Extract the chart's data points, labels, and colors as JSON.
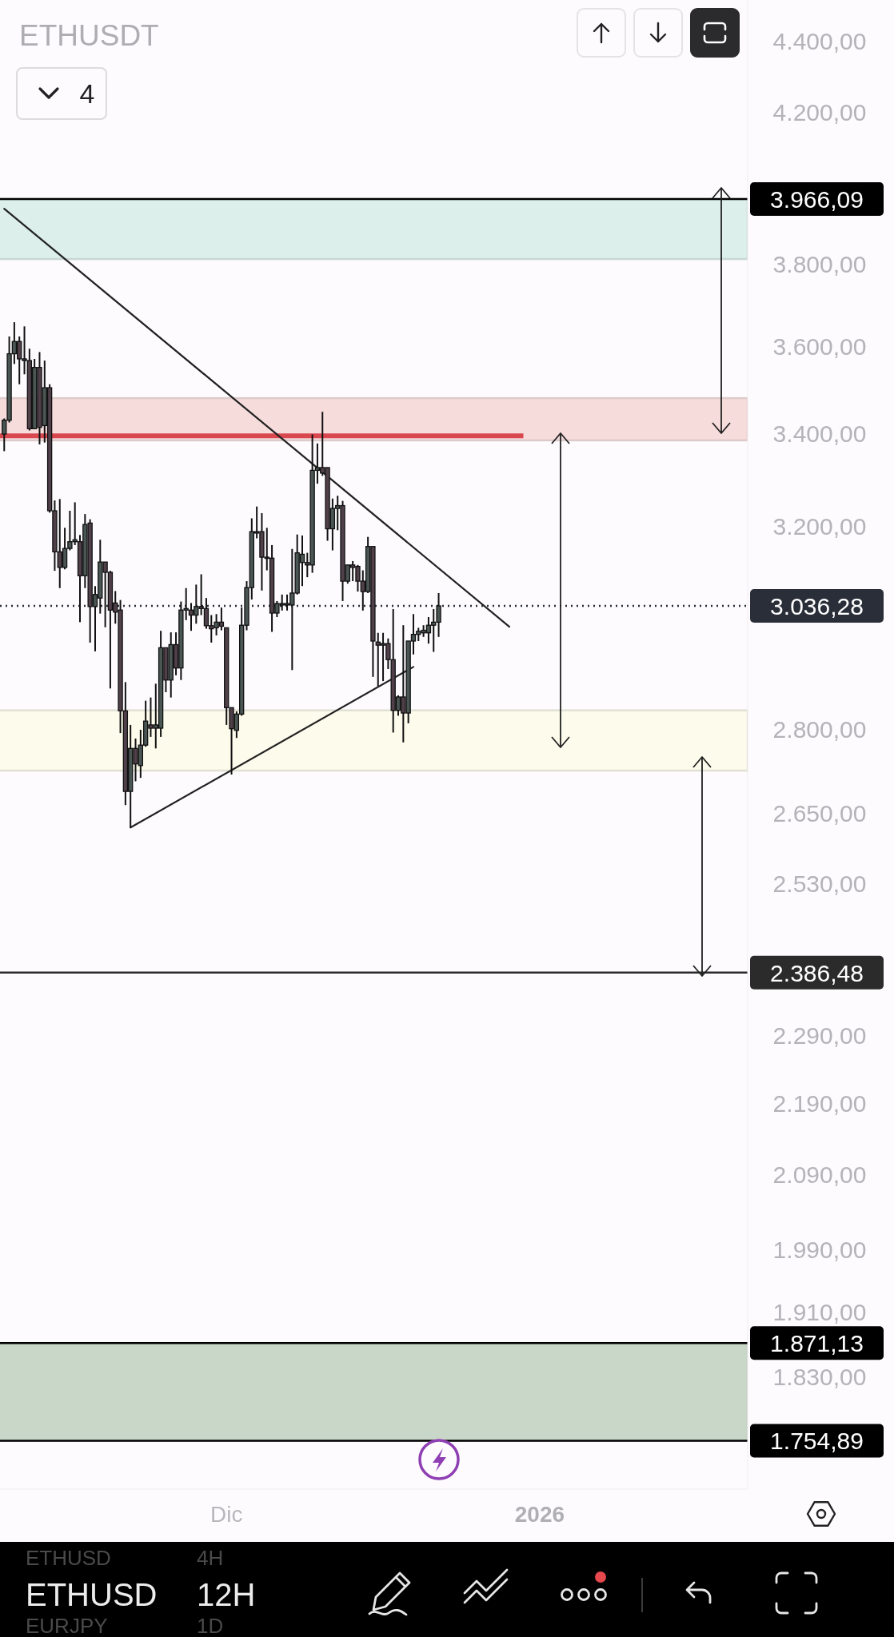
{
  "chart_data": {
    "type": "candlestick",
    "title": "ETHUSDT",
    "categories": [
      null,
      null,
      null,
      null,
      null,
      null,
      null,
      null,
      null,
      null,
      null,
      null,
      null,
      null,
      null,
      null,
      null,
      null,
      null,
      null,
      null,
      null,
      null,
      null,
      null,
      null,
      null,
      null,
      null,
      null,
      null,
      null,
      null,
      null,
      null,
      null,
      null,
      null,
      null,
      null,
      null,
      null,
      null,
      null,
      "Dic",
      null,
      null,
      null,
      null,
      null,
      null,
      null,
      null,
      null,
      null,
      null,
      null,
      null,
      null,
      null,
      null,
      null,
      null,
      null,
      null,
      null,
      null,
      null,
      null,
      null,
      null,
      null,
      null,
      null,
      null,
      null,
      null,
      null,
      null,
      null,
      null,
      null,
      null,
      null,
      null,
      null,
      null,
      null,
      null,
      null,
      null,
      null,
      null,
      null,
      null,
      null,
      null,
      null,
      null,
      null,
      null,
      null,
      null,
      null,
      null,
      null,
      "2026",
      null,
      null,
      null,
      null,
      null,
      null,
      null,
      null,
      null,
      null,
      null,
      null,
      null,
      null,
      null,
      null,
      null,
      null,
      null,
      null,
      null,
      null,
      null,
      null,
      null,
      null,
      null,
      null,
      null,
      null,
      null,
      null,
      null,
      null,
      null,
      null,
      null,
      null,
      null,
      null
    ],
    "ohlc": [
      [
        3399,
        3434,
        3361,
        3430
      ],
      [
        3430,
        3624,
        3425,
        3583
      ],
      [
        3583,
        3658,
        3559,
        3612
      ],
      [
        3612,
        3624,
        3512,
        3571
      ],
      [
        3571,
        3648,
        3535,
        3567
      ],
      [
        3567,
        3595,
        3407,
        3411
      ],
      [
        3411,
        3571,
        3410,
        3551
      ],
      [
        3551,
        3587,
        3376,
        3414
      ],
      [
        3418,
        3567,
        3380,
        3504
      ],
      [
        3504,
        3512,
        3228,
        3232
      ],
      [
        3232,
        3254,
        3107,
        3146
      ],
      [
        3146,
        3257,
        3072,
        3114
      ],
      [
        3114,
        3196,
        3110,
        3153
      ],
      [
        3153,
        3232,
        3149,
        3167
      ],
      [
        3167,
        3250,
        3160,
        3171
      ],
      [
        3167,
        3181,
        3004,
        3097
      ],
      [
        3097,
        3225,
        3072,
        3203
      ],
      [
        3206,
        3214,
        2964,
        3035
      ],
      [
        3035,
        3076,
        2947,
        3059
      ],
      [
        3052,
        3171,
        3021,
        3125
      ],
      [
        3125,
        3125,
        2994,
        3104
      ],
      [
        3104,
        3107,
        2876,
        3028
      ],
      [
        3042,
        3066,
        3001,
        3024
      ],
      [
        3028,
        3048,
        2793,
        2834
      ],
      [
        2834,
        2888,
        2664,
        2688
      ],
      [
        2688,
        2808,
        2625,
        2765
      ],
      [
        2765,
        2783,
        2706,
        2737
      ],
      [
        2734,
        2799,
        2712,
        2771
      ],
      [
        2771,
        2853,
        2768,
        2815
      ],
      [
        2808,
        2859,
        2786,
        2802
      ],
      [
        2802,
        2885,
        2765,
        2808
      ],
      [
        2802,
        2987,
        2786,
        2954
      ],
      [
        2954,
        2954,
        2869,
        2892
      ],
      [
        2892,
        2984,
        2859,
        2960
      ],
      [
        2960,
        2984,
        2901,
        2915
      ],
      [
        2915,
        3045,
        2892,
        3028
      ],
      [
        3028,
        3072,
        3008,
        3031
      ],
      [
        3028,
        3042,
        2987,
        3018
      ],
      [
        3018,
        3079,
        3001,
        3035
      ],
      [
        3035,
        3100,
        3018,
        3031
      ],
      [
        3031,
        3052,
        2991,
        2997
      ],
      [
        2997,
        3018,
        2964,
        2991
      ],
      [
        2993,
        3020,
        2978,
        3004
      ],
      [
        3004,
        3033,
        2988,
        2996
      ],
      [
        2993,
        2993,
        2808,
        2840
      ],
      [
        2840,
        2840,
        2718,
        2801
      ],
      [
        2798,
        2833,
        2784,
        2828
      ],
      [
        2828,
        3033,
        2825,
        2998
      ],
      [
        2998,
        3086,
        2988,
        3073
      ],
      [
        3073,
        3216,
        3049,
        3188
      ],
      [
        3188,
        3241,
        3174,
        3185
      ],
      [
        3188,
        3227,
        3067,
        3135
      ],
      [
        3135,
        3196,
        3108,
        3133
      ],
      [
        3133,
        3160,
        2985,
        3022
      ],
      [
        3022,
        3046,
        3014,
        3041
      ],
      [
        3041,
        3059,
        3027,
        3038
      ],
      [
        3038,
        3059,
        3027,
        3041
      ],
      [
        3038,
        3152,
        2911,
        3062
      ],
      [
        3062,
        3182,
        3059,
        3144
      ],
      [
        3124,
        3180,
        3076,
        3141
      ],
      [
        3124,
        3144,
        3094,
        3119
      ],
      [
        3119,
        3398,
        3103,
        3319
      ],
      [
        3319,
        3378,
        3290,
        3325
      ],
      [
        3325,
        3449,
        3307,
        3313
      ],
      [
        3325,
        3325,
        3169,
        3194
      ],
      [
        3194,
        3258,
        3149,
        3237
      ],
      [
        3237,
        3264,
        3191,
        3243
      ],
      [
        3243,
        3253,
        3046,
        3086
      ],
      [
        3086,
        3119,
        3081,
        3119
      ],
      [
        3119,
        3127,
        3086,
        3114
      ],
      [
        3116,
        3119,
        3065,
        3086
      ],
      [
        3086,
        3108,
        3027,
        3065
      ],
      [
        3065,
        3177,
        3062,
        3157
      ],
      [
        3157,
        3157,
        2898,
        2967
      ],
      [
        2965,
        2983,
        2880,
        2959
      ],
      [
        2959,
        2983,
        2890,
        2962
      ],
      [
        2962,
        2972,
        2913,
        2931
      ],
      [
        2931,
        3030,
        2794,
        2835
      ],
      [
        2835,
        2863,
        2825,
        2860
      ],
      [
        2860,
        2998,
        2776,
        2830
      ],
      [
        2830,
        2967,
        2811,
        2967
      ],
      [
        2967,
        3020,
        2941,
        2980
      ],
      [
        2980,
        2993,
        2967,
        2986
      ],
      [
        2983,
        2998,
        2975,
        2988
      ],
      [
        2983,
        3014,
        2962,
        2998
      ],
      [
        2998,
        3030,
        2946,
        3004
      ],
      [
        3004,
        3062,
        2975,
        3036.28
      ],
      null,
      null,
      null,
      null,
      null,
      null,
      null,
      null,
      null,
      null,
      null,
      null,
      null,
      null,
      null,
      null,
      null,
      null,
      null,
      null,
      null,
      null,
      null,
      null,
      null,
      null,
      null,
      null,
      null,
      null,
      null,
      null,
      null,
      null,
      null,
      null,
      null,
      null,
      null,
      null,
      null,
      null,
      null,
      null,
      null,
      null,
      null,
      null,
      null,
      null,
      null,
      null,
      null,
      null,
      null,
      null,
      null,
      null,
      null,
      null
    ],
    "colors": [
      "#4a5653",
      "#4a5653",
      "#4a5653",
      "#51404a",
      "#51404a",
      "#51404a",
      "#4a5653",
      "#51404a",
      "#4a5653",
      "#51404a",
      "#51404a",
      "#51404a",
      "#4a5653",
      "#4a5653",
      "#4a5653",
      "#51404a",
      "#4a5653",
      "#51404a",
      "#4a5653",
      "#4a5653",
      "#51404a",
      "#51404a",
      "#51404a",
      "#51404a",
      "#51404a",
      "#4a5653",
      "#51404a",
      "#4a5653",
      "#4a5653",
      "#51404a",
      "#4a5653",
      "#4a5653",
      "#51404a",
      "#4a5653",
      "#51404a",
      "#4a5653",
      "#4a5653",
      "#51404a",
      "#4a5653",
      "#51404a",
      "#51404a",
      "#51404a",
      "#4a5653",
      "#51404a",
      "#51404a",
      "#51404a",
      "#4a5653",
      "#4a5653",
      "#4a5653",
      "#4a5653",
      "#51404a",
      "#51404a",
      "#51404a",
      "#51404a",
      "#4a5653",
      "#51404a",
      "#4a5653",
      "#4a5653",
      "#4a5653",
      "#4a5653",
      "#51404a",
      "#4a5653",
      "#4a5653",
      "#51404a",
      "#51404a",
      "#4a5653",
      "#4a5653",
      "#51404a",
      "#4a5653",
      "#51404a",
      "#51404a",
      "#51404a",
      "#4a5653",
      "#51404a",
      "#51404a",
      "#4a5653",
      "#51404a",
      "#51404a",
      "#4a5653",
      "#51404a",
      "#4a5653",
      "#4a5653",
      "#4a5653",
      "#4a5653",
      "#4a5653",
      "#4a5653",
      "#4a5653",
      null,
      null,
      null,
      null,
      null,
      null,
      null,
      null,
      null,
      null,
      null,
      null,
      null,
      null,
      null,
      null,
      null,
      null,
      null,
      null,
      null,
      null,
      null,
      null,
      null,
      null,
      null,
      null,
      null,
      null,
      null,
      null,
      null,
      null,
      null,
      null,
      null,
      null,
      null,
      null,
      null,
      null,
      null,
      null,
      null,
      null,
      null,
      null,
      null,
      null,
      null,
      null,
      null,
      null,
      null,
      null,
      null,
      null,
      null,
      null
    ],
    "series": [
      {
        "type": "line",
        "color": "#222222",
        "values": [
          3941,
          null,
          null,
          null,
          null,
          null,
          null,
          null,
          null,
          null,
          null,
          null,
          null,
          null,
          null,
          null,
          null,
          null,
          null,
          null,
          null,
          null,
          null,
          null,
          null,
          null,
          null,
          null,
          null,
          null,
          null,
          null,
          null,
          null,
          null,
          null,
          null,
          null,
          null,
          null,
          null,
          null,
          null,
          null,
          null,
          null,
          null,
          null,
          null,
          null,
          null,
          null,
          null,
          null,
          null,
          null,
          null,
          null,
          null,
          null,
          null,
          null,
          null,
          null,
          null,
          null,
          null,
          null,
          null,
          null,
          null,
          null,
          null,
          null,
          null,
          null,
          null,
          null,
          null,
          null,
          null,
          null,
          null,
          null,
          null,
          null,
          null,
          null,
          null,
          null,
          null,
          null,
          null,
          null,
          null,
          null,
          null,
          null,
          null,
          null,
          2995,
          null,
          null,
          null,
          null,
          null,
          null,
          null,
          null,
          null,
          null,
          null,
          null,
          null,
          null,
          null,
          null,
          null,
          null,
          null,
          null,
          null,
          null,
          null,
          null,
          null,
          null,
          null,
          null,
          null,
          null,
          null,
          null,
          null,
          null,
          null,
          null,
          null,
          null,
          null,
          null,
          null,
          null,
          null,
          null,
          null,
          null
        ]
      },
      {
        "type": "line",
        "color": "#222222",
        "values": [
          null,
          null,
          null,
          null,
          null,
          null,
          null,
          null,
          null,
          null,
          null,
          null,
          null,
          null,
          null,
          null,
          null,
          null,
          null,
          null,
          null,
          null,
          null,
          null,
          null,
          2625,
          null,
          null,
          null,
          null,
          null,
          null,
          null,
          null,
          null,
          null,
          null,
          null,
          null,
          null,
          null,
          null,
          null,
          null,
          null,
          null,
          null,
          null,
          null,
          null,
          null,
          null,
          null,
          null,
          null,
          null,
          null,
          null,
          null,
          null,
          null,
          null,
          null,
          null,
          null,
          null,
          null,
          null,
          null,
          null,
          null,
          null,
          null,
          null,
          null,
          null,
          null,
          null,
          null,
          null,
          null,
          2917,
          null,
          null,
          null,
          null,
          null,
          null,
          null,
          null,
          null,
          null,
          null,
          null,
          null,
          null,
          null,
          null,
          null,
          null,
          null,
          null,
          null,
          null,
          null,
          null,
          null,
          null,
          null,
          null,
          null,
          null,
          null,
          null,
          null,
          null,
          null,
          null,
          null,
          null,
          null,
          null,
          null,
          null,
          null,
          null,
          null,
          null,
          null,
          null,
          null,
          null,
          null,
          null,
          null,
          null,
          null,
          null,
          null,
          null,
          null,
          null,
          null,
          null,
          null,
          null,
          null
        ]
      }
    ],
    "log": true,
    "ylim": [
      1700,
      4520
    ],
    "yticks": [
      {
        "value": 4400,
        "label": "4.400,00"
      },
      {
        "value": 4200,
        "label": "4.200,00"
      },
      {
        "value": 3800,
        "label": "3.800,00"
      },
      {
        "value": 3600,
        "label": "3.600,00"
      },
      {
        "value": 3400,
        "label": "3.400,00"
      },
      {
        "value": 3200,
        "label": "3.200,00"
      },
      {
        "value": 2800,
        "label": "2.800,00"
      },
      {
        "value": 2650,
        "label": "2.650,00"
      },
      {
        "value": 2530,
        "label": "2.530,00"
      },
      {
        "value": 2290,
        "label": "2.290,00"
      },
      {
        "value": 2190,
        "label": "2.190,00"
      },
      {
        "value": 2090,
        "label": "2.090,00"
      },
      {
        "value": 1990,
        "label": "1.990,00"
      },
      {
        "value": 1910,
        "label": "1.910,00"
      },
      {
        "value": 1830,
        "label": "1.830,00"
      }
    ],
    "bands": [
      {
        "axis": "y",
        "from": 3813,
        "to": 3966.09,
        "color": "#dcefea"
      },
      {
        "axis": "y",
        "from": 3385,
        "to": 3480,
        "color": "#f7dcdc"
      },
      {
        "axis": "y",
        "from": 2725,
        "to": 2835,
        "color": "#fdfbeb"
      },
      {
        "axis": "y",
        "from": 1754.89,
        "to": 1871.13,
        "color": "#c9d7c9"
      }
    ],
    "ref_lines": [
      {
        "axis": "y",
        "value": 3966.09,
        "label": "3.966,09",
        "color": "#000000"
      },
      {
        "axis": "y",
        "value": 3395,
        "color": "#d9484f"
      },
      {
        "axis": "y",
        "value": 3036.28,
        "label": "3.036,28",
        "color": "#2a2e39",
        "line_style": "dotted"
      },
      {
        "axis": "y",
        "value": 2386.48,
        "label": "2.386,48",
        "color": "#2b2b2b"
      },
      {
        "axis": "y",
        "value": 1871.13,
        "label": "1.871,13",
        "color": "#000000"
      },
      {
        "axis": "y",
        "value": 1754.89,
        "label": "1.754,89",
        "color": "#000000"
      }
    ],
    "annotations": [
      "4",
      "ETHUSD",
      "12H",
      "ETHUSD",
      "4H",
      "EURJPY",
      "1D"
    ]
  }
}
